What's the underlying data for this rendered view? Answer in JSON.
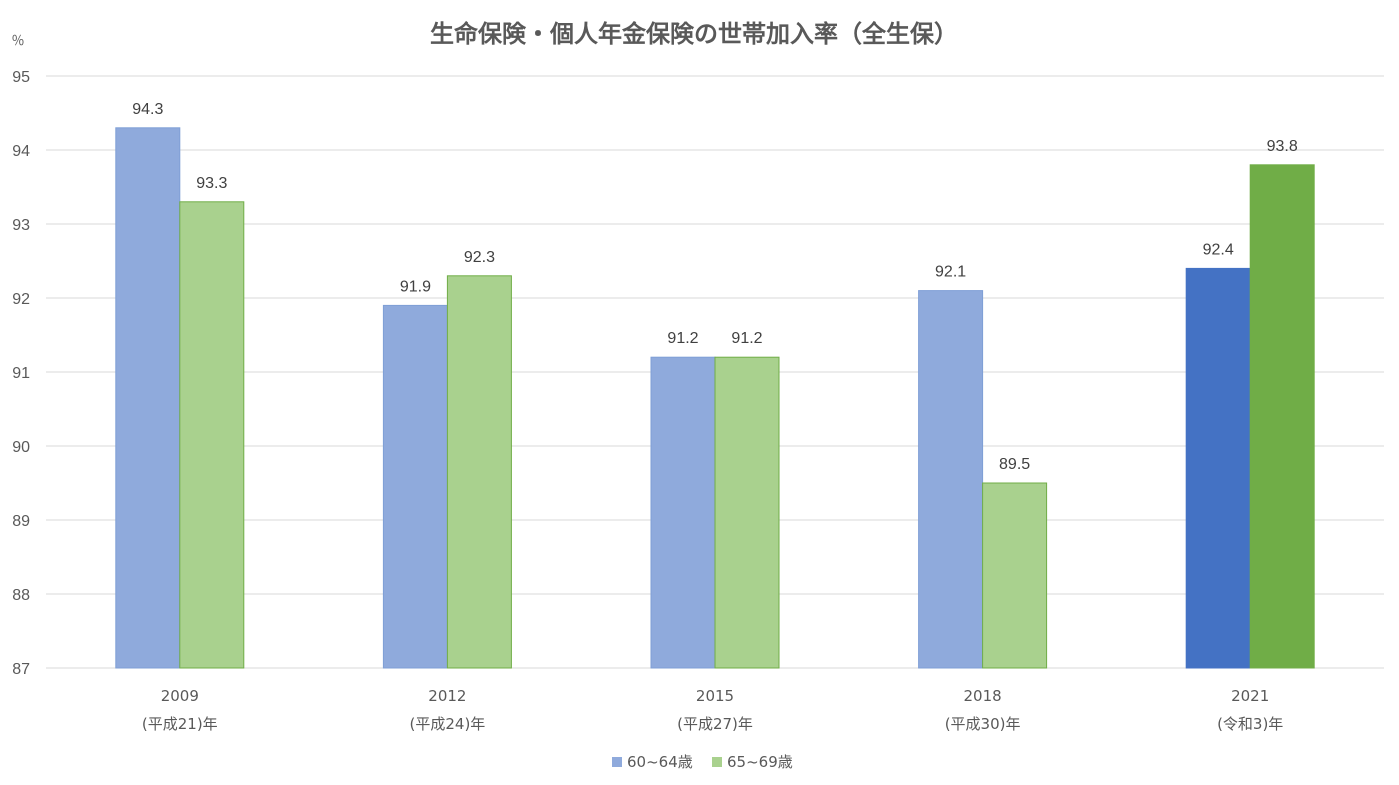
{
  "chart_data": {
    "type": "bar",
    "title": "生命保険・個人年金保険の世帯加入率（全生保）",
    "ylabel": "％",
    "ylim": [
      87,
      95
    ],
    "yticks": [
      87,
      88,
      89,
      90,
      91,
      92,
      93,
      94,
      95
    ],
    "categories": [
      {
        "year": "2009",
        "era": "(平成21)年"
      },
      {
        "year": "2012",
        "era": "(平成24)年"
      },
      {
        "year": "2015",
        "era": "(平成27)年"
      },
      {
        "year": "2018",
        "era": "(平成30)年"
      },
      {
        "year": "2021",
        "era": "(令和3)年"
      }
    ],
    "series": [
      {
        "name": "60~64歳",
        "values": [
          94.3,
          91.9,
          91.2,
          92.1,
          92.4
        ],
        "color": "#8faadc",
        "highlight_color": "#4472c4",
        "stroke": "#7f9fd6"
      },
      {
        "name": "65~69歳",
        "values": [
          93.3,
          92.3,
          91.2,
          89.5,
          93.8
        ],
        "color": "#a9d18e",
        "highlight_color": "#70ad47",
        "stroke": "#70ad47"
      }
    ],
    "highlight_index": 4,
    "grid": true,
    "legend": "bottom-center"
  }
}
